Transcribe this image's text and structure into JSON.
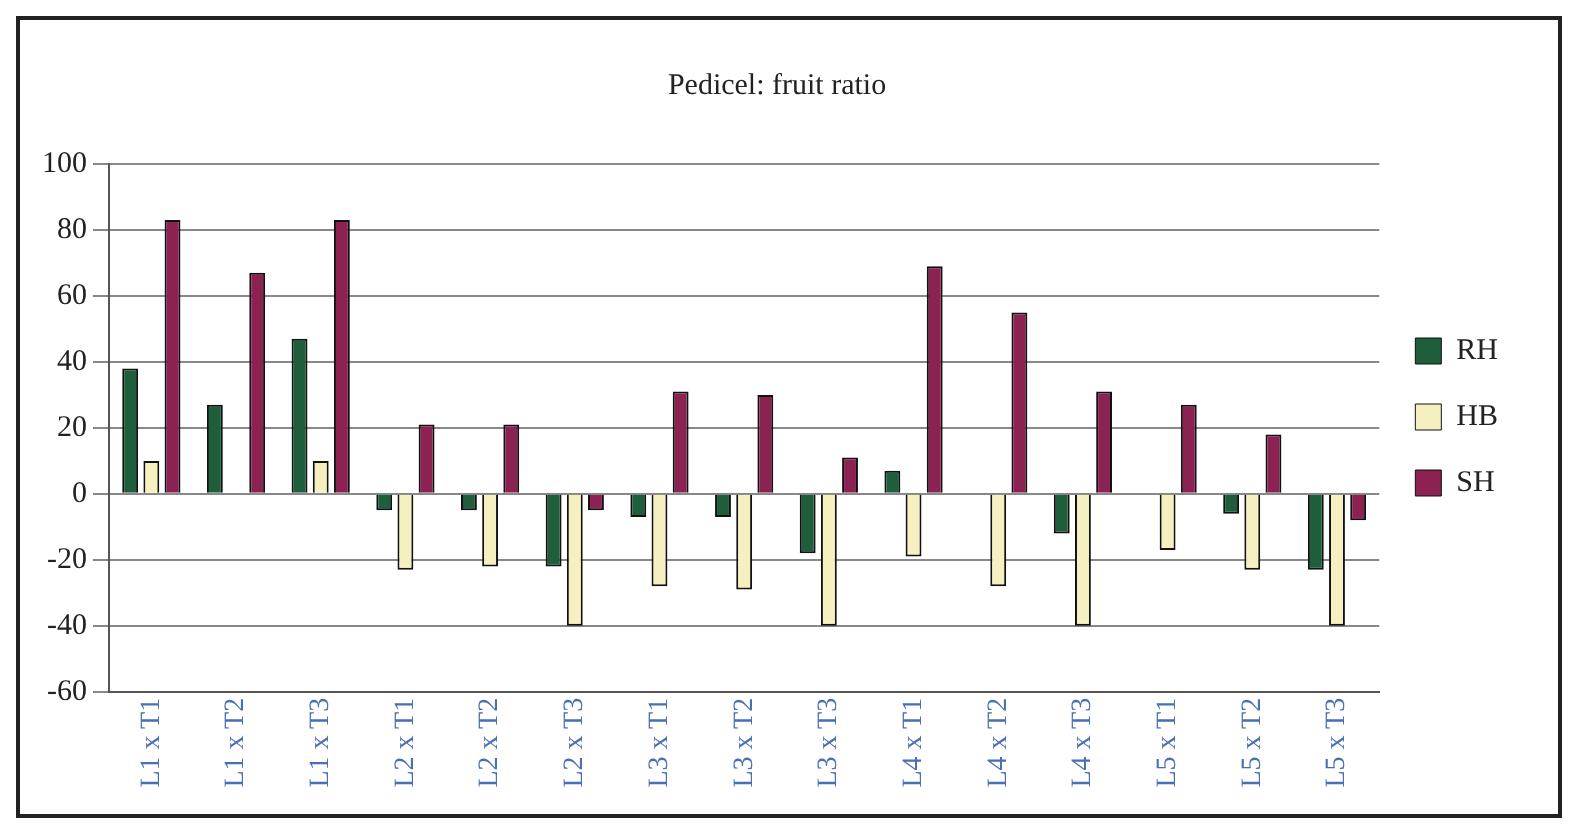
{
  "chart_data": {
    "type": "bar",
    "title": "Pedicel: fruit ratio",
    "categories": [
      "L1 x T1",
      "L1 x T2",
      "L1 x T3",
      "L2 x T1",
      "L2 x T2",
      "L2 x T3",
      "L3 x T1",
      "L3 x T2",
      "L3 x T3",
      "L4 x T1",
      "L4 x T2",
      "L4 x T3",
      "L5 x T1",
      "L5 x T2",
      "L5 x T3"
    ],
    "series": [
      {
        "name": "RH",
        "color": "#1e5e3a",
        "values": [
          38,
          27,
          47,
          -5,
          -5,
          -22,
          -7,
          -7,
          -18,
          7,
          0,
          -12,
          0,
          -6,
          -23
        ]
      },
      {
        "name": "HB",
        "color": "#f6f0c0",
        "values": [
          10,
          0,
          10,
          -23,
          -22,
          -40,
          -28,
          -29,
          -40,
          -19,
          -28,
          -40,
          -17,
          -23,
          -40
        ]
      },
      {
        "name": "SH",
        "color": "#8b2252",
        "values": [
          83,
          67,
          83,
          21,
          21,
          -5,
          31,
          30,
          11,
          69,
          55,
          31,
          27,
          18,
          -8
        ]
      }
    ],
    "ylim": [
      -60,
      100
    ],
    "yticks": [
      -60,
      -40,
      -20,
      0,
      20,
      40,
      60,
      80,
      100
    ],
    "grid": "y",
    "legend": "right"
  }
}
